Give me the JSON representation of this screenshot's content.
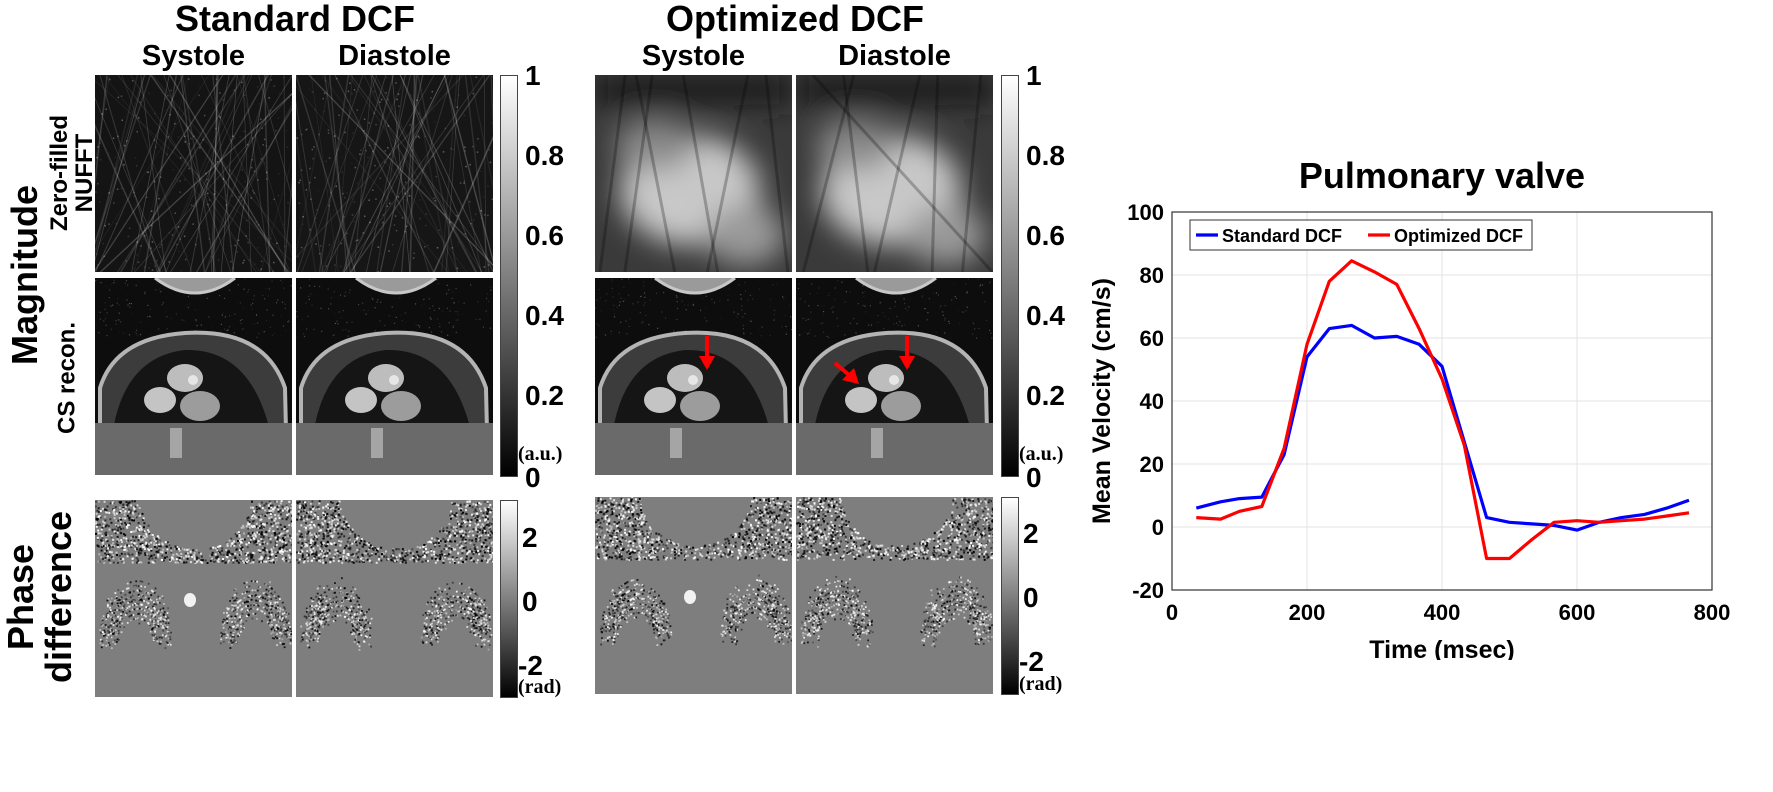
{
  "groups": {
    "standard": {
      "title": "Standard DCF",
      "col1": "Systole",
      "col2": "Diastole"
    },
    "optimized": {
      "title": "Optimized DCF",
      "col1": "Systole",
      "col2": "Diastole"
    }
  },
  "row_labels": {
    "magnitude": "Magnitude",
    "zero_filled_line1": "Zero-filled",
    "zero_filled_line2": "NUFFT",
    "cs": "CS recon.",
    "phase_line1": "Phase",
    "phase_line2": "difference"
  },
  "colorbars": {
    "magnitude_ticks": [
      "1",
      "0.8",
      "0.6",
      "0.4",
      "0.2",
      "0"
    ],
    "magnitude_unit": "(a.u.)",
    "phase_ticks": [
      "2",
      "0",
      "-2"
    ],
    "phase_unit": "(rad)"
  },
  "annotations": {
    "arrow_color": "#ff0000"
  },
  "chart_data": {
    "type": "line",
    "title": "Pulmonary valve",
    "xlabel": "Time (msec)",
    "ylabel": "Mean Velocity (cm/s)",
    "xlim": [
      0,
      800
    ],
    "ylim": [
      -20,
      100
    ],
    "xticks": [
      0,
      200,
      400,
      600,
      800
    ],
    "yticks": [
      -20,
      0,
      20,
      40,
      60,
      80,
      100
    ],
    "grid": true,
    "legend_position": "top",
    "series": [
      {
        "name": "Standard DCF",
        "color": "#0000ff",
        "x": [
          36,
          72,
          100,
          133,
          166,
          200,
          233,
          266,
          300,
          333,
          366,
          400,
          433,
          466,
          500,
          533,
          566,
          600,
          633,
          666,
          700,
          733,
          766
        ],
        "y": [
          6,
          8,
          9,
          9.5,
          23,
          54,
          63,
          64,
          60,
          60.5,
          58,
          51,
          27,
          3,
          1.5,
          1,
          0.5,
          -1,
          1.5,
          3,
          4,
          6,
          8.5
        ]
      },
      {
        "name": "Optimized DCF",
        "color": "#ff0000",
        "x": [
          36,
          72,
          100,
          133,
          166,
          200,
          233,
          266,
          300,
          333,
          366,
          400,
          433,
          466,
          500,
          533,
          566,
          600,
          633,
          666,
          700,
          733,
          766
        ],
        "y": [
          3,
          2.5,
          5,
          6.5,
          25,
          58,
          78,
          84.5,
          81,
          77,
          63,
          47,
          26,
          -10,
          -10,
          -4,
          1.5,
          2,
          1.5,
          2,
          2.5,
          3.5,
          4.5
        ]
      }
    ]
  }
}
